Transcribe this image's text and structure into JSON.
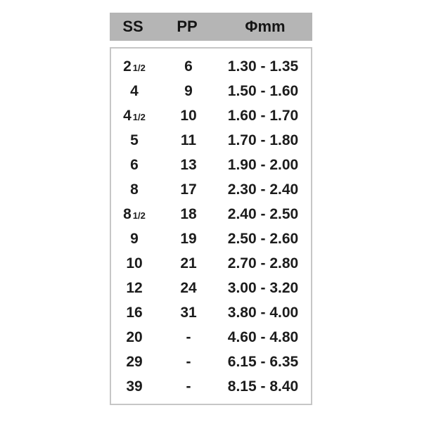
{
  "chart_data": {
    "type": "table",
    "title": "",
    "columns": [
      {
        "key": "ss",
        "label": "SS"
      },
      {
        "key": "pp",
        "label": "PP"
      },
      {
        "key": "mm",
        "label": "Φmm"
      }
    ],
    "rows": [
      {
        "ss": "2",
        "ss_frac": "1/2",
        "pp": "6",
        "mm": "1.30 - 1.35"
      },
      {
        "ss": "4",
        "ss_frac": "",
        "pp": "9",
        "mm": "1.50 - 1.60"
      },
      {
        "ss": "4",
        "ss_frac": "1/2",
        "pp": "10",
        "mm": "1.60 - 1.70"
      },
      {
        "ss": "5",
        "ss_frac": "",
        "pp": "11",
        "mm": "1.70 - 1.80"
      },
      {
        "ss": "6",
        "ss_frac": "",
        "pp": "13",
        "mm": "1.90 - 2.00"
      },
      {
        "ss": "8",
        "ss_frac": "",
        "pp": "17",
        "mm": "2.30 - 2.40"
      },
      {
        "ss": "8",
        "ss_frac": "1/2",
        "pp": "18",
        "mm": "2.40 - 2.50"
      },
      {
        "ss": "9",
        "ss_frac": "",
        "pp": "19",
        "mm": "2.50 - 2.60"
      },
      {
        "ss": "10",
        "ss_frac": "",
        "pp": "21",
        "mm": "2.70 - 2.80"
      },
      {
        "ss": "12",
        "ss_frac": "",
        "pp": "24",
        "mm": "3.00 - 3.20"
      },
      {
        "ss": "16",
        "ss_frac": "",
        "pp": "31",
        "mm": "3.80 - 4.00"
      },
      {
        "ss": "20",
        "ss_frac": "",
        "pp": "-",
        "mm": "4.60 - 4.80"
      },
      {
        "ss": "29",
        "ss_frac": "",
        "pp": "-",
        "mm": "6.15 - 6.35"
      },
      {
        "ss": "39",
        "ss_frac": "",
        "pp": "-",
        "mm": "8.15 - 8.40"
      }
    ]
  },
  "colors": {
    "header_bg": "#b5b5b5",
    "body_border": "#c6c6c6",
    "text": "#1c1c1c",
    "background": "#ffffff"
  }
}
